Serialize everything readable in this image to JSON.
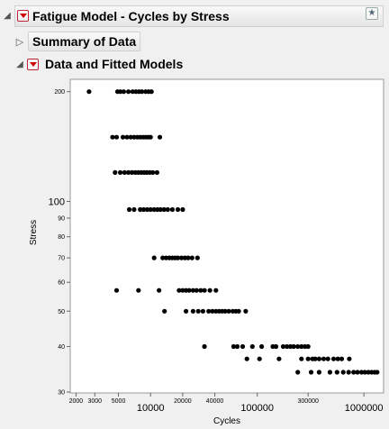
{
  "report": {
    "title": "Fatigue Model - Cycles by Stress",
    "sections": [
      {
        "label": "Summary of Data",
        "expanded": false
      },
      {
        "label": "Data and Fitted Models",
        "expanded": true
      }
    ]
  },
  "chart_data": {
    "type": "scatter",
    "xlabel": "Cycles",
    "ylabel": "Stress",
    "x_scale": "log",
    "y_scale": "log",
    "xlim": [
      1800,
      1500000
    ],
    "ylim": [
      30,
      215
    ],
    "x_ticks_small": [
      "2000",
      "3000",
      "5000",
      "20000",
      "40000",
      "300000"
    ],
    "x_ticks_large": [
      "10000",
      "100000",
      "1000000"
    ],
    "y_ticks_small": [
      "200",
      "90",
      "80",
      "70",
      "60",
      "50",
      "40",
      "30"
    ],
    "y_ticks_large": [
      "100"
    ],
    "point_color": "#000000",
    "points": [
      [
        2650,
        200
      ],
      [
        4900,
        200
      ],
      [
        5200,
        200
      ],
      [
        5600,
        200
      ],
      [
        6200,
        200
      ],
      [
        6800,
        200
      ],
      [
        7300,
        200
      ],
      [
        7800,
        200
      ],
      [
        8300,
        200
      ],
      [
        9000,
        200
      ],
      [
        9600,
        200
      ],
      [
        10200,
        200
      ],
      [
        4400,
        150
      ],
      [
        4800,
        150
      ],
      [
        5500,
        150
      ],
      [
        6000,
        150
      ],
      [
        6500,
        150
      ],
      [
        7000,
        150
      ],
      [
        7500,
        150
      ],
      [
        8000,
        150
      ],
      [
        8500,
        150
      ],
      [
        9000,
        150
      ],
      [
        9500,
        150
      ],
      [
        10000,
        150
      ],
      [
        12200,
        150
      ],
      [
        4650,
        120
      ],
      [
        5200,
        120
      ],
      [
        5700,
        120
      ],
      [
        6200,
        120
      ],
      [
        6700,
        120
      ],
      [
        7200,
        120
      ],
      [
        7700,
        120
      ],
      [
        8200,
        120
      ],
      [
        8700,
        120
      ],
      [
        9200,
        120
      ],
      [
        9800,
        120
      ],
      [
        10500,
        120
      ],
      [
        11500,
        120
      ],
      [
        6300,
        95
      ],
      [
        7000,
        95
      ],
      [
        8000,
        95
      ],
      [
        8600,
        95
      ],
      [
        9300,
        95
      ],
      [
        10000,
        95
      ],
      [
        10800,
        95
      ],
      [
        11600,
        95
      ],
      [
        12400,
        95
      ],
      [
        13400,
        95
      ],
      [
        14500,
        95
      ],
      [
        16000,
        95
      ],
      [
        18000,
        95
      ],
      [
        20000,
        95
      ],
      [
        10800,
        70
      ],
      [
        13000,
        70
      ],
      [
        14000,
        70
      ],
      [
        15000,
        70
      ],
      [
        16000,
        70
      ],
      [
        17000,
        70
      ],
      [
        18000,
        70
      ],
      [
        19500,
        70
      ],
      [
        21000,
        70
      ],
      [
        22500,
        70
      ],
      [
        24500,
        70
      ],
      [
        27500,
        70
      ],
      [
        4800,
        57
      ],
      [
        7700,
        57
      ],
      [
        12000,
        57
      ],
      [
        18500,
        57
      ],
      [
        20000,
        57
      ],
      [
        21500,
        57
      ],
      [
        23000,
        57
      ],
      [
        25000,
        57
      ],
      [
        27000,
        57
      ],
      [
        29500,
        57
      ],
      [
        32000,
        57
      ],
      [
        36000,
        57
      ],
      [
        41000,
        57
      ],
      [
        13500,
        50
      ],
      [
        21500,
        50
      ],
      [
        25000,
        50
      ],
      [
        28000,
        50
      ],
      [
        31000,
        50
      ],
      [
        35000,
        50
      ],
      [
        38000,
        50
      ],
      [
        41000,
        50
      ],
      [
        44000,
        50
      ],
      [
        47000,
        50
      ],
      [
        50000,
        50
      ],
      [
        54000,
        50
      ],
      [
        59000,
        50
      ],
      [
        63000,
        50
      ],
      [
        67000,
        50
      ],
      [
        78000,
        50
      ],
      [
        32000,
        40
      ],
      [
        60000,
        40
      ],
      [
        65000,
        40
      ],
      [
        73000,
        40
      ],
      [
        90000,
        40
      ],
      [
        110000,
        40
      ],
      [
        140000,
        40
      ],
      [
        150000,
        40
      ],
      [
        175000,
        40
      ],
      [
        190000,
        40
      ],
      [
        205000,
        40
      ],
      [
        220000,
        40
      ],
      [
        240000,
        40
      ],
      [
        260000,
        40
      ],
      [
        280000,
        40
      ],
      [
        300000,
        40
      ],
      [
        80000,
        37
      ],
      [
        105000,
        37
      ],
      [
        160000,
        37
      ],
      [
        260000,
        37
      ],
      [
        300000,
        37
      ],
      [
        330000,
        37
      ],
      [
        350000,
        37
      ],
      [
        380000,
        37
      ],
      [
        420000,
        37
      ],
      [
        460000,
        37
      ],
      [
        520000,
        37
      ],
      [
        570000,
        37
      ],
      [
        620000,
        37
      ],
      [
        730000,
        37
      ],
      [
        240000,
        34
      ],
      [
        320000,
        34
      ],
      [
        380000,
        34
      ],
      [
        480000,
        34
      ],
      [
        560000,
        34
      ],
      [
        640000,
        34
      ],
      [
        720000,
        34
      ],
      [
        800000,
        34
      ],
      [
        870000,
        34
      ],
      [
        950000,
        34
      ],
      [
        1020000,
        34
      ],
      [
        1100000,
        34
      ],
      [
        1180000,
        34
      ],
      [
        1260000,
        34
      ],
      [
        1330000,
        34
      ]
    ]
  }
}
